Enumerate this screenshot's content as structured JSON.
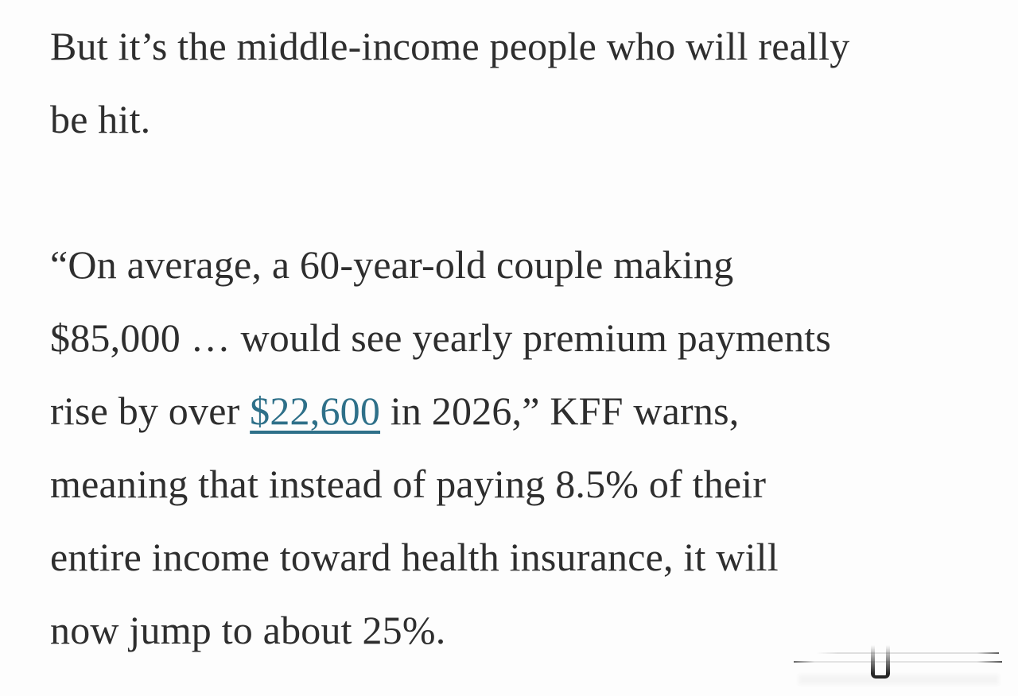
{
  "colors": {
    "background": "#fdfdfd",
    "text": "#2e2e2e",
    "link": "#2e7089",
    "scrubber": "#000000"
  },
  "article": {
    "paragraph1": {
      "line1": "But it’s the middle-income people who will really",
      "line2": "be hit."
    },
    "paragraph2": {
      "line1": "“On average, a 60-year-old couple making",
      "line2": "$85,000 … would see yearly premium payments",
      "line3_before_link": "rise by over ",
      "link_text": "$22,600",
      "line3_after_link": " in 2026,” KFF warns,",
      "line4": "meaning that instead of paying 8.5% of their",
      "line5": "entire income toward health insurance, it will",
      "line6": "now jump to about 25%."
    }
  },
  "media_player": {
    "scrubber_present": true
  }
}
